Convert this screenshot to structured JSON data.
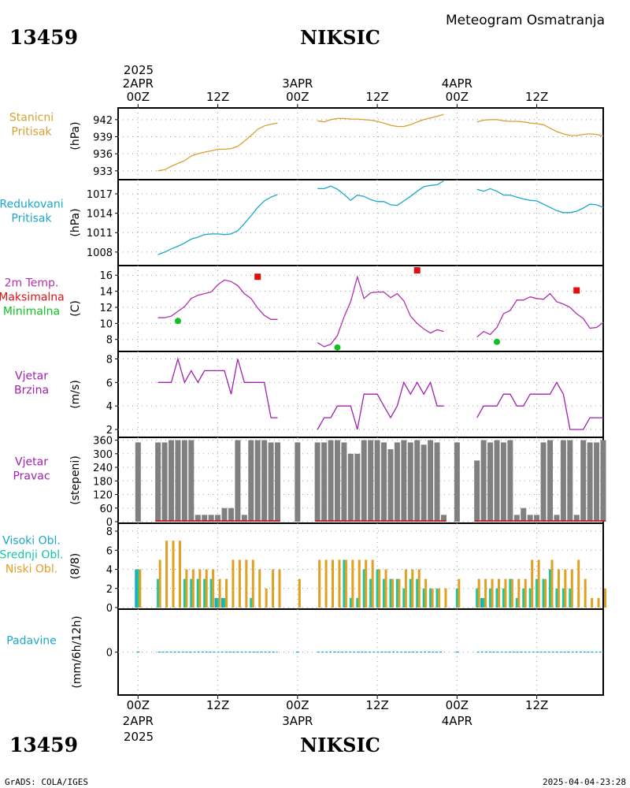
{
  "header": {
    "station_id": "13459",
    "station_name": "NIKSIC",
    "subtitle": "Meteogram Osmatranja",
    "footer_left": "GrADS: COLA/IGES",
    "footer_right": "2025-04-04-23:28"
  },
  "time_axis": {
    "year": "2025",
    "day_labels": [
      "2APR",
      "3APR",
      "4APR"
    ],
    "hour_labels": [
      "00Z",
      "12Z",
      "00Z",
      "12Z",
      "00Z",
      "12Z"
    ],
    "hour_positions": [
      0,
      12,
      24,
      36,
      48,
      60
    ],
    "day_positions": [
      0,
      24,
      48
    ],
    "range_h": [
      -3,
      70
    ]
  },
  "colors": {
    "pressure": "#d9a030",
    "reduced": "#1aa7c9",
    "temp": "#b030b0",
    "max": "#e01010",
    "min": "#10c020",
    "wind": "#a020b0",
    "bars": "#808080",
    "high": "#1aa7c9",
    "mid": "#14c8a0",
    "low": "#e0a020",
    "precip": "#1aa7c9"
  },
  "panels": {
    "pressure": {
      "label": [
        "Stanicni",
        "Pritisak"
      ],
      "unit": "(hPa)",
      "ticks": [
        "942",
        "939",
        "936",
        "933"
      ]
    },
    "reduced": {
      "label": [
        "Redukovani",
        "Pritisak"
      ],
      "unit": "(hPa)",
      "ticks": [
        "1017",
        "1014",
        "1011",
        "1008"
      ]
    },
    "temp": {
      "label": [
        "2m Temp.",
        "Maksimalna",
        "Minimalna"
      ],
      "unit": "(C)",
      "ticks": [
        "16",
        "14",
        "12",
        "10",
        "8"
      ]
    },
    "wind_speed": {
      "label": [
        "Vjetar",
        "Brzina"
      ],
      "unit": "(m/s)",
      "ticks": [
        "8",
        "6",
        "4",
        "2"
      ]
    },
    "wind_dir": {
      "label": [
        "Vjetar",
        "Pravac"
      ],
      "unit": "(stepeni)",
      "ticks": [
        "360",
        "300",
        "240",
        "180",
        "120",
        "60",
        "0"
      ]
    },
    "clouds": {
      "label": [
        "Visoki Obl.",
        "Srednji Obl.",
        "Niski Obl."
      ],
      "unit": "(8/8)",
      "ticks": [
        "8",
        "6",
        "4",
        "2",
        "0"
      ]
    },
    "precip": {
      "label": [
        "Padavine"
      ],
      "unit": "(mm/6h/12h)",
      "ticks": [
        "0"
      ]
    }
  },
  "chart_data": [
    {
      "type": "line",
      "ylabel": "(hPa)",
      "ylim": [
        932,
        943.5
      ],
      "segments": [
        {
          "x": [
            3,
            4,
            5,
            6,
            7,
            8,
            9,
            10,
            11,
            12,
            13,
            14,
            15,
            16,
            17,
            18,
            19,
            20,
            21
          ],
          "y": [
            933.0,
            933.2,
            933.8,
            934.3,
            934.8,
            935.6,
            936.0,
            936.3,
            936.5,
            936.8,
            936.8,
            936.9,
            937.3,
            938.2,
            939.2,
            940.3,
            940.9,
            941.2,
            941.4
          ]
        },
        {
          "x": [
            27,
            28,
            29,
            30,
            31,
            32,
            33,
            34,
            35,
            36,
            37,
            38,
            39,
            40,
            41,
            42,
            43,
            44,
            45,
            46
          ],
          "y": [
            941.8,
            941.6,
            942.0,
            942.2,
            942.2,
            942.1,
            942.1,
            942.0,
            941.9,
            941.7,
            941.4,
            941.0,
            940.8,
            940.8,
            941.1,
            941.6,
            942.0,
            942.3,
            942.6,
            942.9
          ]
        },
        {
          "x": [
            51,
            52,
            53,
            54,
            55,
            56,
            57,
            58,
            59,
            60,
            61,
            62,
            63,
            64,
            65,
            66,
            67,
            68,
            69,
            70
          ],
          "y": [
            941.6,
            941.9,
            942.0,
            942.0,
            941.8,
            941.7,
            941.7,
            941.6,
            941.4,
            941.3,
            941.1,
            940.5,
            939.9,
            939.5,
            939.2,
            939.2,
            939.4,
            939.5,
            939.4,
            939.1
          ]
        }
      ]
    },
    {
      "type": "line",
      "ylabel": "(hPa)",
      "ylim": [
        1006.4,
        1018.7
      ],
      "segments": [
        {
          "x": [
            3,
            4,
            5,
            6,
            7,
            8,
            9,
            10,
            11,
            12,
            13,
            14,
            15,
            16,
            17,
            18,
            19,
            20,
            21
          ],
          "y": [
            1007.6,
            1008.0,
            1008.5,
            1008.9,
            1009.4,
            1010.0,
            1010.3,
            1010.7,
            1010.8,
            1010.8,
            1010.7,
            1010.8,
            1011.3,
            1012.4,
            1013.6,
            1014.9,
            1015.9,
            1016.5,
            1016.9
          ]
        },
        {
          "x": [
            27,
            28,
            29,
            30,
            31,
            32,
            33,
            34,
            35,
            36,
            37,
            38,
            39,
            40,
            41,
            42,
            43,
            44,
            45,
            46
          ],
          "y": [
            1017.8,
            1017.8,
            1018.2,
            1017.7,
            1016.9,
            1016.0,
            1016.8,
            1016.6,
            1016.1,
            1015.8,
            1015.8,
            1015.3,
            1015.2,
            1015.9,
            1016.6,
            1017.4,
            1018.1,
            1018.3,
            1018.4,
            1019.0
          ]
        },
        {
          "x": [
            51,
            52,
            53,
            54,
            55,
            56,
            57,
            58,
            59,
            60,
            61,
            62,
            63,
            64,
            65,
            66,
            67,
            68,
            69,
            70
          ],
          "y": [
            1017.7,
            1017.4,
            1017.8,
            1017.4,
            1016.8,
            1016.8,
            1016.5,
            1016.2,
            1016.0,
            1015.9,
            1015.4,
            1014.9,
            1014.4,
            1014.1,
            1014.1,
            1014.3,
            1014.8,
            1015.4,
            1015.3,
            1014.9
          ]
        }
      ]
    },
    {
      "type": "line",
      "ylabel": "(C)",
      "ylim": [
        6.7,
        17.0
      ],
      "segments": [
        {
          "x": [
            3,
            4,
            5,
            6,
            7,
            8,
            9,
            10,
            11,
            12,
            13,
            14,
            15,
            16,
            17,
            18,
            19,
            20,
            21
          ],
          "y": [
            10.7,
            10.7,
            10.9,
            11.5,
            12.1,
            13.1,
            13.5,
            13.7,
            13.9,
            14.8,
            15.4,
            15.2,
            14.7,
            13.7,
            13.1,
            11.9,
            11.0,
            10.5,
            10.5
          ]
        },
        {
          "x": [
            27,
            28,
            29,
            30,
            31,
            32,
            33,
            34,
            35,
            36,
            37,
            38,
            39,
            40,
            41,
            42,
            43,
            44,
            45,
            46
          ],
          "y": [
            7.6,
            7.1,
            7.4,
            8.5,
            10.8,
            12.7,
            15.8,
            13.1,
            13.8,
            13.9,
            13.9,
            13.2,
            13.7,
            12.8,
            10.9,
            10.0,
            9.3,
            8.8,
            9.2,
            9.0
          ]
        },
        {
          "x": [
            51,
            52,
            53,
            54,
            55,
            56,
            57,
            58,
            59,
            60,
            61,
            62,
            63,
            64,
            65,
            66,
            67,
            68,
            69,
            70
          ],
          "y": [
            8.3,
            9.0,
            8.6,
            9.5,
            11.2,
            11.6,
            12.9,
            12.9,
            13.3,
            13.1,
            13.0,
            13.7,
            12.7,
            12.4,
            12.0,
            11.2,
            10.6,
            9.4,
            9.5,
            10.1
          ]
        }
      ],
      "max_points": {
        "x": [
          18,
          42,
          66
        ],
        "y": [
          15.8,
          16.6,
          14.1
        ]
      },
      "min_points": {
        "x": [
          6,
          30,
          54
        ],
        "y": [
          10.3,
          7.0,
          7.7
        ]
      }
    },
    {
      "type": "line",
      "ylabel": "(m/s)",
      "ylim": [
        1.6,
        8.5
      ],
      "segments": [
        {
          "x": [
            3,
            4,
            5,
            6,
            7,
            8,
            9,
            10,
            11,
            12,
            13,
            14,
            15,
            16,
            17,
            18,
            19,
            20,
            21
          ],
          "y": [
            6,
            6,
            6,
            8,
            6,
            7,
            6,
            7,
            7,
            7,
            7,
            5,
            8,
            6,
            6,
            6,
            6,
            3,
            3
          ]
        },
        {
          "x": [
            27,
            28,
            29,
            30,
            31,
            32,
            33,
            34,
            35,
            36,
            37,
            38,
            39,
            40,
            41,
            42,
            43,
            44,
            45,
            46
          ],
          "y": [
            2,
            3,
            3,
            4,
            4,
            4,
            2,
            5,
            5,
            5,
            4,
            3,
            4,
            6,
            5,
            6,
            5,
            6,
            4,
            4
          ]
        },
        {
          "x": [
            51,
            52,
            53,
            54,
            55,
            56,
            57,
            58,
            59,
            60,
            61,
            62,
            63,
            64,
            65,
            66,
            67,
            68,
            69,
            70
          ],
          "y": [
            3,
            4,
            4,
            4,
            5,
            5,
            4,
            4,
            5,
            5,
            5,
            5,
            6,
            5,
            2,
            2,
            2,
            3,
            3,
            3
          ]
        }
      ]
    },
    {
      "type": "bar",
      "ylabel": "(stepeni)",
      "ylim": [
        0,
        362
      ],
      "x": [
        0,
        3,
        4,
        5,
        6,
        7,
        8,
        9,
        10,
        11,
        12,
        13,
        14,
        15,
        16,
        17,
        18,
        19,
        20,
        21,
        24,
        27,
        28,
        29,
        30,
        31,
        32,
        33,
        34,
        35,
        36,
        37,
        38,
        39,
        40,
        41,
        42,
        43,
        44,
        45,
        46,
        48,
        51,
        52,
        53,
        54,
        55,
        56,
        57,
        58,
        59,
        60,
        61,
        62,
        63,
        64,
        65,
        66,
        67,
        68,
        69,
        70
      ],
      "values": [
        350,
        350,
        350,
        360,
        360,
        360,
        360,
        30,
        30,
        30,
        30,
        60,
        60,
        360,
        30,
        360,
        360,
        360,
        350,
        350,
        350,
        350,
        350,
        360,
        360,
        350,
        300,
        300,
        360,
        360,
        360,
        350,
        320,
        350,
        360,
        350,
        360,
        340,
        360,
        350,
        30,
        350,
        270,
        360,
        350,
        360,
        350,
        360,
        30,
        60,
        30,
        30,
        350,
        360,
        30,
        360,
        360,
        30,
        360,
        350,
        350,
        360
      ]
    },
    {
      "type": "bar",
      "ylabel": "(8/8)",
      "ylim": [
        0,
        8.5
      ],
      "x": [
        0,
        3,
        4,
        5,
        6,
        7,
        8,
        9,
        10,
        11,
        12,
        13,
        14,
        15,
        16,
        17,
        18,
        19,
        20,
        21,
        24,
        27,
        28,
        29,
        30,
        31,
        32,
        33,
        34,
        35,
        36,
        37,
        38,
        39,
        40,
        41,
        42,
        43,
        44,
        45,
        46,
        48,
        51,
        52,
        53,
        54,
        55,
        56,
        57,
        58,
        59,
        60,
        61,
        62,
        63,
        64,
        65,
        66,
        67,
        68,
        69,
        70
      ],
      "series": [
        {
          "name": "Visoki Obl.",
          "values": [
            4,
            0,
            0,
            0,
            0,
            0,
            0,
            0,
            0,
            0,
            1,
            1,
            0,
            0,
            0,
            0,
            0,
            0,
            0,
            0,
            0,
            0,
            0,
            0,
            0,
            0,
            0,
            0,
            0,
            0,
            0,
            0,
            0,
            0,
            0,
            0,
            0,
            0,
            0,
            0,
            0,
            0,
            0,
            1,
            0,
            0,
            0,
            0,
            0,
            0,
            0,
            0,
            0,
            0,
            0,
            0,
            0,
            0,
            0,
            0,
            0,
            0
          ]
        },
        {
          "name": "Srednji Obl.",
          "values": [
            4,
            3,
            0,
            0,
            0,
            3,
            3,
            3,
            3,
            3,
            1,
            1,
            0,
            0,
            0,
            1,
            0,
            0,
            0,
            0,
            0,
            0,
            0,
            0,
            0,
            5,
            1,
            1,
            4,
            3,
            4,
            3,
            3,
            3,
            2,
            3,
            3,
            2,
            2,
            2,
            0,
            2,
            2,
            1,
            2,
            2,
            2,
            3,
            1,
            2,
            2,
            3,
            3,
            4,
            2,
            2,
            2,
            0,
            0,
            0,
            0,
            0
          ]
        },
        {
          "name": "Niski Obl.",
          "values": [
            4,
            5,
            7,
            7,
            7,
            4,
            4,
            4,
            4,
            4,
            3,
            3,
            5,
            5,
            5,
            5,
            4,
            2,
            4,
            4,
            3,
            5,
            5,
            5,
            5,
            5,
            5,
            5,
            5,
            5,
            4,
            4,
            3,
            3,
            4,
            4,
            4,
            3,
            2,
            2,
            2,
            3,
            3,
            3,
            3,
            3,
            3,
            3,
            3,
            3,
            5,
            5,
            3,
            5,
            4,
            4,
            4,
            5,
            3,
            1,
            1,
            2
          ]
        }
      ]
    },
    {
      "type": "line",
      "ylabel": "(mm/6h/12h)",
      "ylim": [
        -1,
        1
      ],
      "segments": [
        {
          "x": [
            0
          ],
          "y": [
            0
          ]
        },
        {
          "x": [
            3,
            21
          ],
          "y": [
            0,
            0
          ]
        },
        {
          "x": [
            24
          ],
          "y": [
            0
          ]
        },
        {
          "x": [
            27,
            46
          ],
          "y": [
            0,
            0
          ]
        },
        {
          "x": [
            48
          ],
          "y": [
            0
          ]
        },
        {
          "x": [
            51,
            70
          ],
          "y": [
            0,
            0
          ]
        }
      ]
    }
  ]
}
